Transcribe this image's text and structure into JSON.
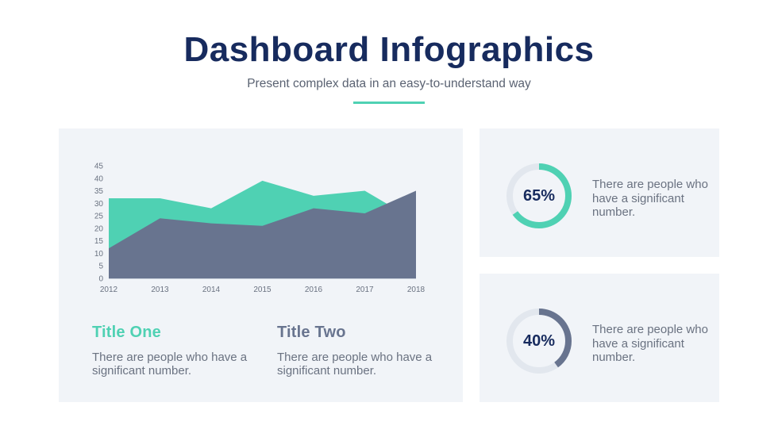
{
  "header": {
    "title": "Dashboard Infographics",
    "subtitle": "Present complex data in an easy-to-understand way",
    "accent_color": "#4fd1b3"
  },
  "colors": {
    "navy": "#172b5e",
    "teal": "#4fd1b3",
    "slate": "#68748f",
    "panel_bg": "#f1f4f8",
    "text_gray": "#6a7281",
    "track_gray": "#e2e7ee"
  },
  "chart_data": {
    "type": "area",
    "categories": [
      "2012",
      "2013",
      "2014",
      "2015",
      "2016",
      "2017",
      "2018"
    ],
    "series": [
      {
        "values": [
          32,
          32,
          28,
          39,
          33,
          35,
          23
        ],
        "color": "#4fd1b3"
      },
      {
        "values": [
          12,
          24,
          22,
          21,
          28,
          26,
          35
        ],
        "color": "#68748f"
      }
    ],
    "yticks": [
      0,
      5,
      10,
      15,
      20,
      25,
      30,
      35,
      40,
      45
    ],
    "ylim": [
      0,
      45
    ],
    "grid": false,
    "title": "",
    "xlabel": "",
    "ylabel": ""
  },
  "blocks": [
    {
      "title": "Title One",
      "text": "There are people who have a significant number.",
      "color": "#4fd1b3"
    },
    {
      "title": "Title Two",
      "text": "There are people who have a significant number.",
      "color": "#68748f"
    }
  ],
  "stats": [
    {
      "label": "65%",
      "value": 65,
      "text": "There are people who have a significant number.",
      "color": "#4fd1b3"
    },
    {
      "label": "40%",
      "value": 40,
      "text": "There are people who have a significant number.",
      "color": "#68748f"
    }
  ]
}
